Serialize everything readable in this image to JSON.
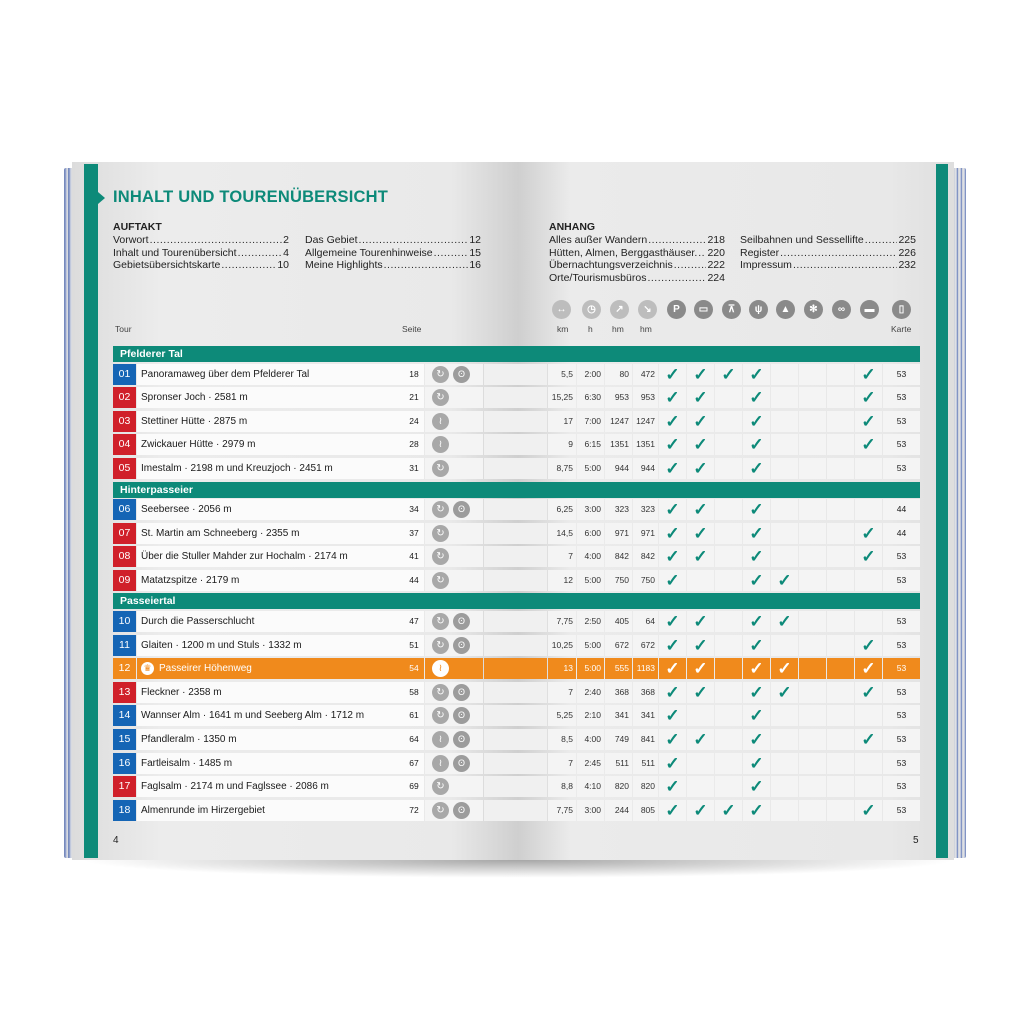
{
  "heading": "INHALT UND TOURENÜBERSICHT",
  "auftakt": {
    "title": "AUFTAKT",
    "col1": [
      {
        "label": "Vorwort",
        "page": "2"
      },
      {
        "label": "Inhalt und Tourenübersicht",
        "page": "4"
      },
      {
        "label": "Gebietsübersichtskarte",
        "page": "10"
      }
    ],
    "col2": [
      {
        "label": "Das Gebiet",
        "page": "12"
      },
      {
        "label": "Allgemeine Tourenhinweise",
        "page": "15"
      },
      {
        "label": "Meine Highlights",
        "page": "16"
      }
    ]
  },
  "anhang": {
    "title": "ANHANG",
    "col1": [
      {
        "label": "Alles außer Wandern",
        "page": "218"
      },
      {
        "label": "Hütten, Almen, Berggasthäuser.",
        "page": "220"
      },
      {
        "label": "Übernachtungsverzeichnis",
        "page": "222"
      },
      {
        "label": "Orte/Tourismusbüros",
        "page": "224"
      }
    ],
    "col2": [
      {
        "label": "Seilbahnen und Sessellifte",
        "page": "225"
      },
      {
        "label": "Register",
        "page": "226"
      },
      {
        "label": "Impressum",
        "page": "232"
      }
    ]
  },
  "headers": {
    "tour": "Tour",
    "seite": "Seite",
    "km": "km",
    "h": "h",
    "hm_up": "hm",
    "hm_down": "hm",
    "karte": "Karte"
  },
  "header_icons": [
    "distance-icon",
    "clock-icon",
    "ascent-icon",
    "descent-icon",
    "parking-icon",
    "bus-icon",
    "cable-car-icon",
    "restaurant-icon",
    "summit-icon",
    "winter-icon",
    "bike-icon",
    "bed-icon",
    "map-icon"
  ],
  "colors": {
    "teal": "#0d8a79",
    "blue": "#1565b5",
    "red": "#d0202a",
    "orange": "#f08a1c"
  },
  "groups": [
    {
      "name": "Pfelderer Tal",
      "tours": [
        {
          "num": "01",
          "color": "blue",
          "name": "Panoramaweg über dem Pfelderer Tal",
          "seite": "18",
          "symbols": [
            "loop",
            "bear"
          ],
          "km": "5,5",
          "h": "2:00",
          "up": "80",
          "down": "472",
          "checks": [
            1,
            1,
            1,
            1,
            0,
            0,
            0,
            1
          ],
          "karte": "53"
        },
        {
          "num": "02",
          "color": "red",
          "name": "Spronser Joch · 2581 m",
          "seite": "21",
          "symbols": [
            "loop"
          ],
          "km": "15,25",
          "h": "6:30",
          "up": "953",
          "down": "953",
          "checks": [
            1,
            1,
            0,
            1,
            0,
            0,
            0,
            1
          ],
          "karte": "53"
        },
        {
          "num": "03",
          "color": "red",
          "name": "Stettiner Hütte · 2875 m",
          "seite": "24",
          "symbols": [
            "line"
          ],
          "km": "17",
          "h": "7:00",
          "up": "1247",
          "down": "1247",
          "checks": [
            1,
            1,
            0,
            1,
            0,
            0,
            0,
            1
          ],
          "karte": "53"
        },
        {
          "num": "04",
          "color": "red",
          "name": "Zwickauer Hütte · 2979 m",
          "seite": "28",
          "symbols": [
            "line"
          ],
          "km": "9",
          "h": "6:15",
          "up": "1351",
          "down": "1351",
          "checks": [
            1,
            1,
            0,
            1,
            0,
            0,
            0,
            1
          ],
          "karte": "53"
        },
        {
          "num": "05",
          "color": "red",
          "name": "Imestalm · 2198 m und Kreuzjoch · 2451 m",
          "seite": "31",
          "symbols": [
            "loop"
          ],
          "km": "8,75",
          "h": "5:00",
          "up": "944",
          "down": "944",
          "checks": [
            1,
            1,
            0,
            1,
            0,
            0,
            0,
            0
          ],
          "karte": "53"
        }
      ]
    },
    {
      "name": "Hinterpasseier",
      "tours": [
        {
          "num": "06",
          "color": "blue",
          "name": "Seebersee · 2056 m",
          "seite": "34",
          "symbols": [
            "loop",
            "bear"
          ],
          "km": "6,25",
          "h": "3:00",
          "up": "323",
          "down": "323",
          "checks": [
            1,
            1,
            0,
            1,
            0,
            0,
            0,
            0
          ],
          "karte": "44"
        },
        {
          "num": "07",
          "color": "red",
          "name": "St. Martin am Schneeberg · 2355 m",
          "seite": "37",
          "symbols": [
            "loop"
          ],
          "km": "14,5",
          "h": "6:00",
          "up": "971",
          "down": "971",
          "checks": [
            1,
            1,
            0,
            1,
            0,
            0,
            0,
            1
          ],
          "karte": "44"
        },
        {
          "num": "08",
          "color": "red",
          "name": "Über die Stuller Mahder zur Hochalm · 2174 m",
          "seite": "41",
          "symbols": [
            "loop"
          ],
          "km": "7",
          "h": "4:00",
          "up": "842",
          "down": "842",
          "checks": [
            1,
            1,
            0,
            1,
            0,
            0,
            0,
            1
          ],
          "karte": "53"
        },
        {
          "num": "09",
          "color": "red",
          "name": "Matatzspitze · 2179 m",
          "seite": "44",
          "symbols": [
            "loop"
          ],
          "km": "12",
          "h": "5:00",
          "up": "750",
          "down": "750",
          "checks": [
            1,
            0,
            0,
            1,
            1,
            0,
            0,
            0
          ],
          "karte": "53"
        }
      ]
    },
    {
      "name": "Passeiertal",
      "tours": [
        {
          "num": "10",
          "color": "blue",
          "name": "Durch die Passerschlucht",
          "seite": "47",
          "symbols": [
            "loop",
            "bear"
          ],
          "km": "7,75",
          "h": "2:50",
          "up": "405",
          "down": "64",
          "checks": [
            1,
            1,
            0,
            1,
            1,
            0,
            0,
            0
          ],
          "karte": "53"
        },
        {
          "num": "11",
          "color": "blue",
          "name": "Glaiten · 1200 m und Stuls · 1332 m",
          "seite": "51",
          "symbols": [
            "loop",
            "bear"
          ],
          "km": "10,25",
          "h": "5:00",
          "up": "672",
          "down": "672",
          "checks": [
            1,
            1,
            0,
            1,
            0,
            0,
            0,
            1
          ],
          "karte": "53"
        },
        {
          "num": "12",
          "color": "orange",
          "highlight": true,
          "name": "Passeirer Höhenweg",
          "seite": "54",
          "symbols": [
            "line"
          ],
          "km": "13",
          "h": "5:00",
          "up": "555",
          "down": "1183",
          "checks": [
            1,
            1,
            0,
            1,
            1,
            0,
            0,
            1
          ],
          "karte": "53"
        },
        {
          "num": "13",
          "color": "red",
          "name": "Fleckner · 2358 m",
          "seite": "58",
          "symbols": [
            "loop",
            "bear"
          ],
          "km": "7",
          "h": "2:40",
          "up": "368",
          "down": "368",
          "checks": [
            1,
            1,
            0,
            1,
            1,
            0,
            0,
            1
          ],
          "karte": "53"
        },
        {
          "num": "14",
          "color": "blue",
          "name": "Wannser Alm · 1641 m und Seeberg Alm · 1712 m",
          "seite": "61",
          "symbols": [
            "loop",
            "bear"
          ],
          "km": "5,25",
          "h": "2:10",
          "up": "341",
          "down": "341",
          "checks": [
            1,
            0,
            0,
            1,
            0,
            0,
            0,
            0
          ],
          "karte": "53"
        },
        {
          "num": "15",
          "color": "blue",
          "name": "Pfandleralm · 1350 m",
          "seite": "64",
          "symbols": [
            "line",
            "bear"
          ],
          "km": "8,5",
          "h": "4:00",
          "up": "749",
          "down": "841",
          "checks": [
            1,
            1,
            0,
            1,
            0,
            0,
            0,
            1
          ],
          "karte": "53"
        },
        {
          "num": "16",
          "color": "blue",
          "name": "Fartleisalm · 1485 m",
          "seite": "67",
          "symbols": [
            "line",
            "bear"
          ],
          "km": "7",
          "h": "2:45",
          "up": "511",
          "down": "511",
          "checks": [
            1,
            0,
            0,
            1,
            0,
            0,
            0,
            0
          ],
          "karte": "53"
        },
        {
          "num": "17",
          "color": "red",
          "name": "Faglsalm · 2174 m und Faglssee · 2086 m",
          "seite": "69",
          "symbols": [
            "loop"
          ],
          "km": "8,8",
          "h": "4:10",
          "up": "820",
          "down": "820",
          "checks": [
            1,
            0,
            0,
            1,
            0,
            0,
            0,
            0
          ],
          "karte": "53"
        },
        {
          "num": "18",
          "color": "blue",
          "name": "Almenrunde im Hirzergebiet",
          "seite": "72",
          "symbols": [
            "loop",
            "bear"
          ],
          "km": "7,75",
          "h": "3:00",
          "up": "244",
          "down": "805",
          "checks": [
            1,
            1,
            1,
            1,
            0,
            0,
            0,
            1
          ],
          "karte": "53"
        }
      ]
    }
  ],
  "page_left": "4",
  "page_right": "5"
}
